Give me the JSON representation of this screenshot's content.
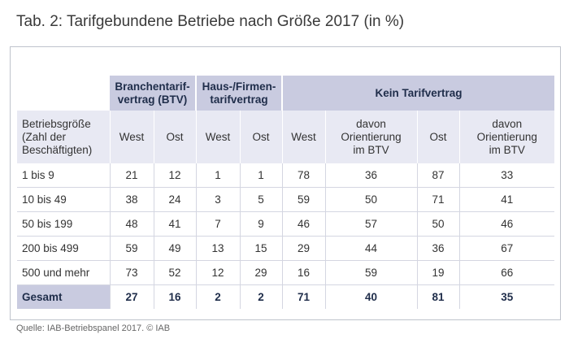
{
  "title": "Tab. 2: Tarifgebundene Betriebe nach Größe 2017 (in %)",
  "groups": {
    "btv": "Branchentarif-vertrag (BTV)",
    "haus": "Haus-/Firmen-tarifvertrag",
    "kein": "Kein Tarifvertrag"
  },
  "columns": {
    "size": "Betriebsgröße (Zahl der Beschäftigten)",
    "btv_west": "West",
    "btv_ost": "Ost",
    "haus_west": "West",
    "haus_ost": "Ost",
    "kein_west": "West",
    "kein_west_orient": "davon Orientierung im BTV",
    "kein_ost": "Ost",
    "kein_ost_orient": "davon Orientierung im BTV"
  },
  "rows": [
    {
      "label": "1 bis 9",
      "values": [
        "21",
        "12",
        "1",
        "1",
        "78",
        "36",
        "87",
        "33"
      ]
    },
    {
      "label": "10 bis 49",
      "values": [
        "38",
        "24",
        "3",
        "5",
        "59",
        "50",
        "71",
        "41"
      ]
    },
    {
      "label": "50 bis 199",
      "values": [
        "48",
        "41",
        "7",
        "9",
        "46",
        "57",
        "50",
        "46"
      ]
    },
    {
      "label": "200 bis 499",
      "values": [
        "59",
        "49",
        "13",
        "15",
        "29",
        "44",
        "36",
        "67"
      ]
    },
    {
      "label": "500 und mehr",
      "values": [
        "73",
        "52",
        "12",
        "29",
        "16",
        "59",
        "19",
        "66"
      ]
    }
  ],
  "total": {
    "label": "Gesamt",
    "values": [
      "27",
      "16",
      "2",
      "2",
      "71",
      "40",
      "81",
      "35"
    ]
  },
  "source": "Quelle: IAB-Betriebspanel 2017. © IAB"
}
